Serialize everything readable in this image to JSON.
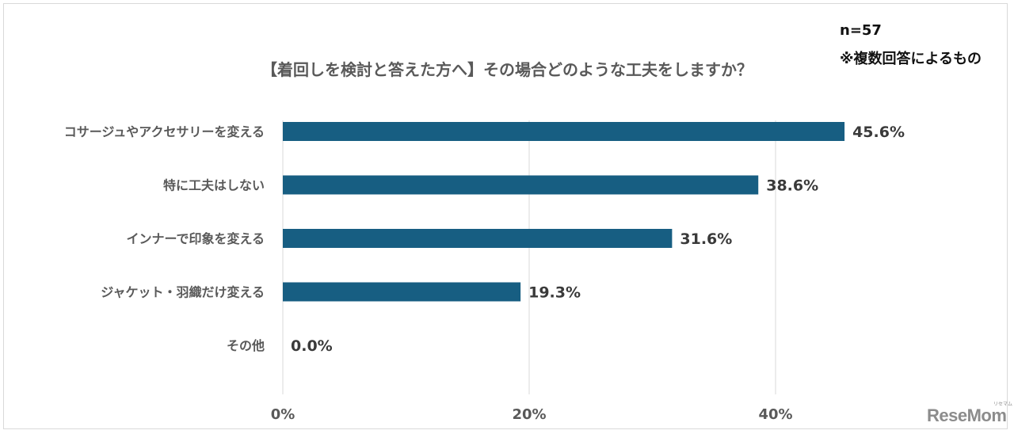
{
  "header": {
    "title": "【着回しを検討と答えた方へ】その場合どのような工夫をしますか？",
    "sample_size": "n=57",
    "note": "※複数回答によるもの"
  },
  "colors": {
    "bar": "#175e82",
    "grid": "#d9d9d9",
    "label": "#595959"
  },
  "logo": {
    "text": "ReseMom",
    "sub": "リセマム"
  },
  "chart_data": {
    "type": "bar",
    "orientation": "horizontal",
    "title": "【着回しを検討と答えた方へ】その場合どのような工夫をしますか？",
    "categories": [
      "コサージュやアクセサリーを変える",
      "特に工夫はしない",
      "インナーで印象を変える",
      "ジャケット・羽織だけ変える",
      "その他"
    ],
    "values": [
      45.6,
      38.6,
      31.6,
      19.3,
      0.0
    ],
    "value_labels": [
      "45.6%",
      "38.6%",
      "31.6%",
      "19.3%",
      "0.0%"
    ],
    "xlim": [
      0,
      50
    ],
    "xticks": [
      0,
      20,
      40
    ],
    "xtick_labels": [
      "0%",
      "20%",
      "40%"
    ],
    "grid": true,
    "legend": "none"
  }
}
